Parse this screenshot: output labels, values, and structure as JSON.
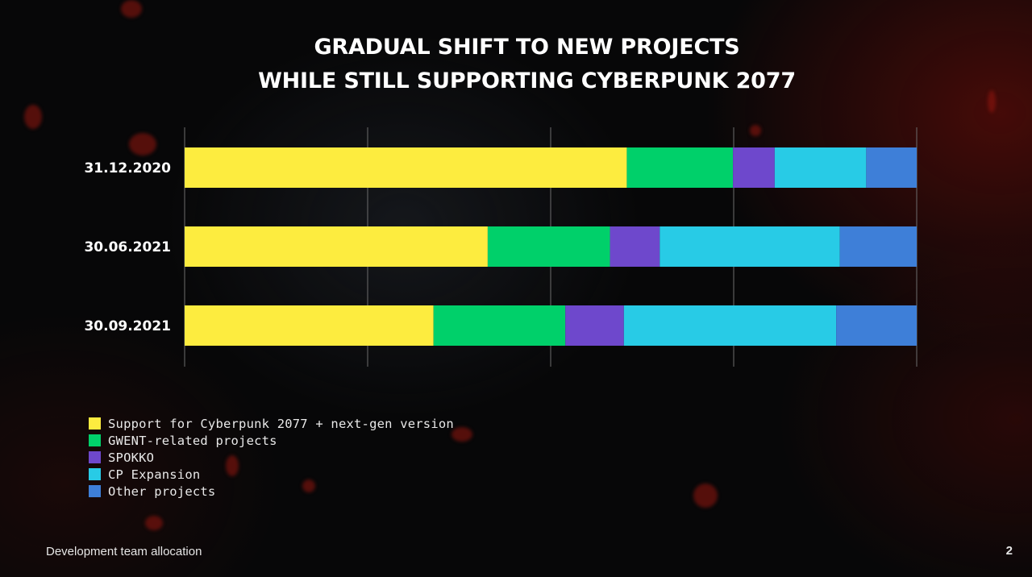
{
  "title": {
    "line1": "GRADUAL SHIFT TO NEW PROJECTS",
    "line2": "WHILE STILL SUPPORTING CYBERPUNK 2077"
  },
  "footer": {
    "caption": "Development team allocation",
    "page_number": "2"
  },
  "chart_data": {
    "type": "bar",
    "orientation": "horizontal",
    "stacked": true,
    "categories": [
      "31.12.2020",
      "30.06.2021",
      "30.09.2021"
    ],
    "series": [
      {
        "name": "Support for Cyberpunk 2077 + next-gen version",
        "color": "#fdec3f",
        "values": [
          60.4,
          41.4,
          34.0
        ]
      },
      {
        "name": "GWENT-related projects",
        "color": "#00d06a",
        "values": [
          14.5,
          16.7,
          18.0
        ]
      },
      {
        "name": "SPOKKO",
        "color": "#6e48cc",
        "values": [
          5.7,
          6.8,
          8.0
        ]
      },
      {
        "name": "CP Expansion",
        "color": "#28cbe6",
        "values": [
          12.5,
          24.6,
          29.0
        ]
      },
      {
        "name": "Other projects",
        "color": "#3e7fd8",
        "values": [
          6.9,
          10.5,
          11.0
        ]
      }
    ],
    "xlim": [
      0,
      100
    ],
    "gridlines": [
      0,
      25,
      50,
      75,
      100
    ],
    "grid": true,
    "legend_position": "bottom-left"
  }
}
